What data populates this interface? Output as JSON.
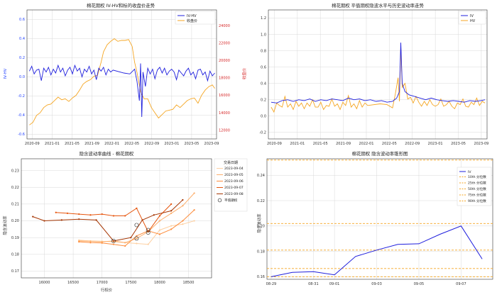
{
  "chart_data": [
    {
      "type": "line",
      "title": "棉花期权 IV-HV和标的收盘价走势",
      "xlabel": "",
      "ylabel": "IV-HV",
      "y2label": "收盘价",
      "x_ticks": [
        "2020-09",
        "2021-01",
        "2021-05",
        "2021-09",
        "2022-01",
        "2022-05",
        "2022-09",
        "2023-01",
        "2023-05",
        "2023-09"
      ],
      "x_range": [
        2020.58,
        2023.75
      ],
      "ylim": [
        -0.65,
        0.7
      ],
      "y_ticks": [
        "0.6",
        "0.4",
        "0.2",
        "0.0",
        "-0.2",
        "-0.4",
        "-0.6"
      ],
      "y_tick_values": [
        0.6,
        0.4,
        0.2,
        0.0,
        -0.2,
        -0.4,
        -0.6
      ],
      "y2lim": [
        11000,
        25800
      ],
      "y2_ticks": [
        "24000",
        "22000",
        "20000",
        "18000",
        "16000",
        "14000",
        "12000"
      ],
      "y2_tick_values": [
        24000,
        22000,
        20000,
        18000,
        16000,
        14000,
        12000
      ],
      "grid": true,
      "legend": "top-right",
      "colors": {
        "iv_hv": "#1f1fdd",
        "close": "#f5a623"
      },
      "series": [
        {
          "name": "IV-HV",
          "axis": "left",
          "x": [
            2020.62,
            2020.66,
            2020.7,
            2020.74,
            2020.78,
            2020.82,
            2020.86,
            2020.9,
            2020.94,
            2020.98,
            2021.02,
            2021.06,
            2021.1,
            2021.14,
            2021.18,
            2021.22,
            2021.26,
            2021.3,
            2021.34,
            2021.38,
            2021.42,
            2021.46,
            2021.5,
            2021.54,
            2021.58,
            2021.62,
            2021.66,
            2021.7,
            2021.74,
            2021.78,
            2021.82,
            2021.86,
            2021.9,
            2021.94,
            2021.98,
            2022.02,
            2022.2,
            2022.3,
            2022.38,
            2022.42,
            2022.46,
            2022.48,
            2022.5,
            2022.52,
            2022.56,
            2022.6,
            2022.64,
            2022.68,
            2022.72,
            2022.76,
            2022.8,
            2022.84,
            2022.88,
            2022.92,
            2022.96,
            2023.0,
            2023.04,
            2023.08,
            2023.12,
            2023.16,
            2023.2,
            2023.24,
            2023.28,
            2023.32,
            2023.36,
            2023.4,
            2023.44,
            2023.48,
            2023.52,
            2023.56,
            2023.6,
            2023.64,
            2023.68,
            2023.72
          ],
          "y": [
            0.06,
            0.11,
            0.03,
            0.07,
            0.08,
            -0.04,
            0.09,
            0.05,
            0.1,
            0.02,
            0.08,
            0.04,
            0.12,
            0.05,
            0.09,
            0.01,
            0.07,
            0.1,
            0.03,
            0.12,
            0.06,
            0.09,
            0.0,
            0.08,
            0.05,
            0.11,
            0.03,
            0.07,
            -0.03,
            0.09,
            0.06,
            0.1,
            0.02,
            0.08,
            0.05,
            0.07,
            0.04,
            0.03,
            0.08,
            -0.05,
            -0.25,
            0.14,
            -0.42,
            0.05,
            -0.1,
            0.09,
            0.03,
            0.08,
            -0.02,
            0.07,
            0.1,
            0.04,
            0.09,
            0.02,
            0.06,
            0.08,
            0.05,
            -0.03,
            0.07,
            0.04,
            0.01,
            0.06,
            0.09,
            0.02,
            0.05,
            -0.02,
            0.07,
            0.08,
            0.02,
            0.05,
            -0.04,
            0.06,
            0.01,
            0.04
          ]
        },
        {
          "name": "收盘价",
          "axis": "right",
          "x": [
            2020.62,
            2020.68,
            2020.74,
            2020.8,
            2020.86,
            2020.92,
            2020.98,
            2021.04,
            2021.1,
            2021.16,
            2021.22,
            2021.28,
            2021.34,
            2021.4,
            2021.46,
            2021.52,
            2021.58,
            2021.64,
            2021.7,
            2021.76,
            2021.82,
            2021.86,
            2021.92,
            2021.98,
            2022.04,
            2022.1,
            2022.16,
            2022.22,
            2022.28,
            2022.34,
            2022.38,
            2022.42,
            2022.48,
            2022.54,
            2022.6,
            2022.66,
            2022.72,
            2022.78,
            2022.84,
            2022.9,
            2022.96,
            2023.02,
            2023.08,
            2023.14,
            2023.2,
            2023.26,
            2023.32,
            2023.38,
            2023.44,
            2023.5,
            2023.56,
            2023.62,
            2023.68,
            2023.72
          ],
          "y": [
            12600,
            12900,
            13700,
            14000,
            14600,
            14900,
            15000,
            15400,
            15800,
            15500,
            15600,
            15300,
            15700,
            16000,
            16600,
            17300,
            17600,
            17800,
            18200,
            18300,
            19800,
            21000,
            21800,
            22200,
            22500,
            22200,
            22300,
            22300,
            22400,
            21600,
            19800,
            18600,
            16400,
            15600,
            15600,
            14600,
            14000,
            13400,
            13800,
            14200,
            14300,
            14400,
            14900,
            14600,
            15000,
            15400,
            15600,
            15700,
            15100,
            16000,
            16600,
            17000,
            17200,
            16800
          ]
        }
      ]
    },
    {
      "type": "line",
      "title": "棉花期权 平值期权隐波水平与历史波动率走势",
      "xlabel": "",
      "ylabel": "",
      "x_ticks": [
        "2020-09",
        "2021-01",
        "2021-05",
        "2021-09",
        "2022-01",
        "2022-05",
        "2022-09",
        "2023-01",
        "2023-05",
        "2023-09"
      ],
      "x_range": [
        2020.58,
        2023.75
      ],
      "ylim": [
        -0.28,
        1.3
      ],
      "y_ticks": [
        "1.2",
        "1.0",
        "0.8",
        "0.6",
        "0.4",
        "0.2",
        "0.0",
        "-0.2"
      ],
      "y_tick_values": [
        1.2,
        1.0,
        0.8,
        0.6,
        0.4,
        0.2,
        0.0,
        -0.2
      ],
      "grid": true,
      "legend": "top-right",
      "colors": {
        "iv": "#1f1fdd",
        "hv": "#f5a623"
      },
      "series": [
        {
          "name": "IV",
          "x": [
            2020.62,
            2020.7,
            2020.78,
            2020.86,
            2020.94,
            2021.02,
            2021.1,
            2021.18,
            2021.26,
            2021.34,
            2021.42,
            2021.5,
            2021.58,
            2021.66,
            2021.74,
            2021.82,
            2021.9,
            2021.98,
            2022.06,
            2022.14,
            2022.22,
            2022.3,
            2022.38,
            2022.44,
            2022.48,
            2022.5,
            2022.52,
            2022.56,
            2022.62,
            2022.7,
            2022.78,
            2022.86,
            2022.94,
            2023.02,
            2023.1,
            2023.18,
            2023.26,
            2023.34,
            2023.42,
            2023.5,
            2023.58,
            2023.66,
            2023.72
          ],
          "y": [
            0.17,
            0.16,
            0.19,
            0.2,
            0.18,
            0.2,
            0.19,
            0.21,
            0.18,
            0.2,
            0.19,
            0.21,
            0.2,
            0.19,
            0.22,
            0.2,
            0.21,
            0.19,
            0.2,
            0.18,
            0.19,
            0.17,
            0.18,
            0.22,
            0.3,
            0.9,
            0.4,
            0.3,
            0.26,
            0.24,
            0.22,
            0.2,
            0.22,
            0.2,
            0.19,
            0.18,
            0.19,
            0.18,
            0.17,
            0.19,
            0.18,
            0.19,
            0.2
          ]
        },
        {
          "name": "HV",
          "x": [
            2020.62,
            2020.66,
            2020.7,
            2020.74,
            2020.78,
            2020.82,
            2020.86,
            2020.9,
            2020.94,
            2020.98,
            2021.02,
            2021.06,
            2021.1,
            2021.14,
            2021.18,
            2021.22,
            2021.26,
            2021.3,
            2021.34,
            2021.38,
            2021.42,
            2021.46,
            2021.5,
            2021.54,
            2021.58,
            2021.62,
            2021.66,
            2021.7,
            2021.74,
            2021.78,
            2021.82,
            2021.86,
            2021.9,
            2021.94,
            2021.98,
            2022.02,
            2022.2,
            2022.3,
            2022.38,
            2022.42,
            2022.46,
            2022.48,
            2022.5,
            2022.52,
            2022.56,
            2022.6,
            2022.64,
            2022.68,
            2022.72,
            2022.76,
            2022.8,
            2022.84,
            2022.88,
            2022.92,
            2022.96,
            2023.0,
            2023.04,
            2023.08,
            2023.12,
            2023.16,
            2023.2,
            2023.24,
            2023.28,
            2023.32,
            2023.36,
            2023.4,
            2023.44,
            2023.48,
            2023.52,
            2023.56,
            2023.6,
            2023.64,
            2023.68,
            2023.72
          ],
          "y": [
            0.11,
            0.05,
            0.16,
            0.13,
            0.11,
            0.24,
            0.11,
            0.15,
            0.08,
            0.18,
            0.12,
            0.16,
            0.09,
            0.16,
            0.12,
            0.2,
            0.11,
            0.11,
            0.17,
            0.08,
            0.13,
            0.12,
            0.21,
            0.12,
            0.15,
            0.08,
            0.17,
            0.13,
            0.25,
            0.11,
            0.15,
            0.09,
            0.19,
            0.11,
            0.16,
            0.13,
            0.15,
            0.14,
            0.1,
            0.27,
            0.47,
            0.18,
            0.85,
            0.35,
            0.4,
            0.21,
            0.23,
            0.16,
            0.24,
            0.17,
            0.12,
            0.18,
            0.13,
            0.2,
            0.14,
            0.12,
            0.14,
            0.21,
            0.12,
            0.14,
            0.18,
            0.12,
            0.09,
            0.16,
            0.14,
            0.21,
            0.12,
            0.11,
            0.17,
            0.14,
            0.22,
            0.13,
            0.18,
            0.16
          ]
        }
      ]
    },
    {
      "type": "line",
      "title": "隐含波动率曲线 - 棉花期权",
      "xlabel": "行权价",
      "ylabel": "隐含波动率",
      "xlim": [
        15600,
        18900
      ],
      "x_ticks": [
        "16000",
        "16500",
        "17000",
        "17500",
        "18000",
        "18500"
      ],
      "x_tick_values": [
        16000,
        16500,
        17000,
        17500,
        18000,
        18500
      ],
      "ylim": [
        0.166,
        0.237
      ],
      "y_ticks": [
        "0.23",
        "0.22",
        "0.21",
        "0.20",
        "0.19",
        "0.18",
        "0.17"
      ],
      "y_tick_values": [
        0.23,
        0.22,
        0.21,
        0.2,
        0.19,
        0.18,
        0.17
      ],
      "grid": true,
      "legend": "outside-right",
      "legend_title": "交易日期",
      "atm_label": "平值期权",
      "series": [
        {
          "name": "2023-09-04",
          "color": "#fdd0a2",
          "x": [
            16600,
            16800,
            17000,
            17200,
            17400,
            17600,
            17800,
            18000,
            18200,
            18400,
            18600
          ],
          "y": [
            0.1885,
            0.188,
            0.1878,
            0.1875,
            0.187,
            0.1865,
            0.186,
            0.1945,
            0.197,
            0.198,
            0.2
          ]
        },
        {
          "name": "2023-09-05",
          "color": "#fdae6b",
          "x": [
            16600,
            16800,
            17000,
            17200,
            17400,
            17600,
            17800,
            18000,
            18200,
            18400,
            18600
          ],
          "y": [
            0.188,
            0.1878,
            0.1875,
            0.188,
            0.187,
            0.1895,
            0.1935,
            0.2,
            0.2045,
            0.209,
            0.2165
          ]
        },
        {
          "name": "2023-09-06",
          "color": "#fd8d3c",
          "x": [
            16600,
            16800,
            17000,
            17200,
            17400,
            17600,
            17800,
            18000,
            18200,
            18400,
            18600
          ],
          "y": [
            0.1875,
            0.187,
            0.1868,
            0.186,
            0.185,
            0.191,
            0.194,
            0.192,
            0.195,
            0.2,
            0.2065
          ]
        },
        {
          "name": "2023-09-07",
          "color": "#e6550d",
          "x": [
            16200,
            16400,
            16600,
            16800,
            17000,
            17200,
            17400,
            17600,
            17800,
            18000,
            18200
          ],
          "y": [
            0.205,
            0.2045,
            0.204,
            0.2035,
            0.204,
            0.203,
            0.203,
            0.2075,
            0.1935,
            0.203,
            0.21
          ]
        },
        {
          "name": "2023-09-08",
          "color": "#a63603",
          "x": [
            15800,
            16000,
            16300,
            16600,
            16900,
            17200,
            17500,
            17700,
            17900,
            18200,
            18400
          ],
          "y": [
            0.2025,
            0.2,
            0.2005,
            0.201,
            0.2005,
            0.188,
            0.19,
            0.2005,
            0.2035,
            0.206,
            0.2125
          ]
        }
      ],
      "atm_points": [
        {
          "x": 17200,
          "y": 0.188
        },
        {
          "x": 17600,
          "y": 0.1975
        },
        {
          "x": 17800,
          "y": 0.1945
        },
        {
          "x": 17800,
          "y": 0.193
        },
        {
          "x": 17600,
          "y": 0.1895
        }
      ]
    },
    {
      "type": "line",
      "title": "棉花期权 隐含波动率锥形图",
      "xlabel": "",
      "ylabel": "隐含波动率",
      "x_ticks": [
        "08-29",
        "08-31",
        "09-01",
        "09-03",
        "09-05",
        "09-07"
      ],
      "x_tick_values": [
        0,
        2,
        3,
        5,
        7,
        9
      ],
      "xlim": [
        -0.2,
        10.5
      ],
      "ylim": [
        0.158,
        0.253
      ],
      "y_ticks": [
        "0.24",
        "0.22",
        "0.20",
        "0.18",
        "0.16"
      ],
      "y_tick_values": [
        0.24,
        0.22,
        0.2,
        0.18,
        0.16
      ],
      "grid": true,
      "legend": "top-right",
      "series": [
        {
          "name": "IV",
          "color": "#1f1fdd",
          "x": [
            0,
            1,
            2,
            3,
            4,
            5,
            6,
            7,
            8,
            9,
            10
          ],
          "y": [
            0.16,
            0.1635,
            0.164,
            0.1615,
            0.176,
            0.181,
            0.1855,
            0.186,
            0.1935,
            0.2,
            0.174
          ]
        }
      ],
      "percentiles": [
        {
          "name": "10th 分位数",
          "value": 0.16
        },
        {
          "name": "25th 分位数",
          "value": 0.1665
        },
        {
          "name": "50th 分位数",
          "value": 0.181
        },
        {
          "name": "75th 分位数",
          "value": 0.202
        },
        {
          "name": "90th 分位数",
          "value": 0.252
        }
      ],
      "percentile_color": "#f5a623"
    }
  ]
}
